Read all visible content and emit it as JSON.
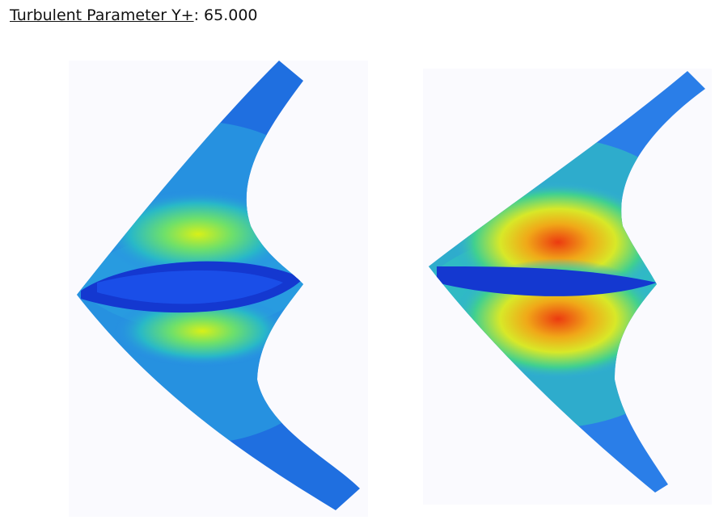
{
  "header": {
    "label": "Turbulent Parameter Y+",
    "value": ": 65.000"
  }
}
